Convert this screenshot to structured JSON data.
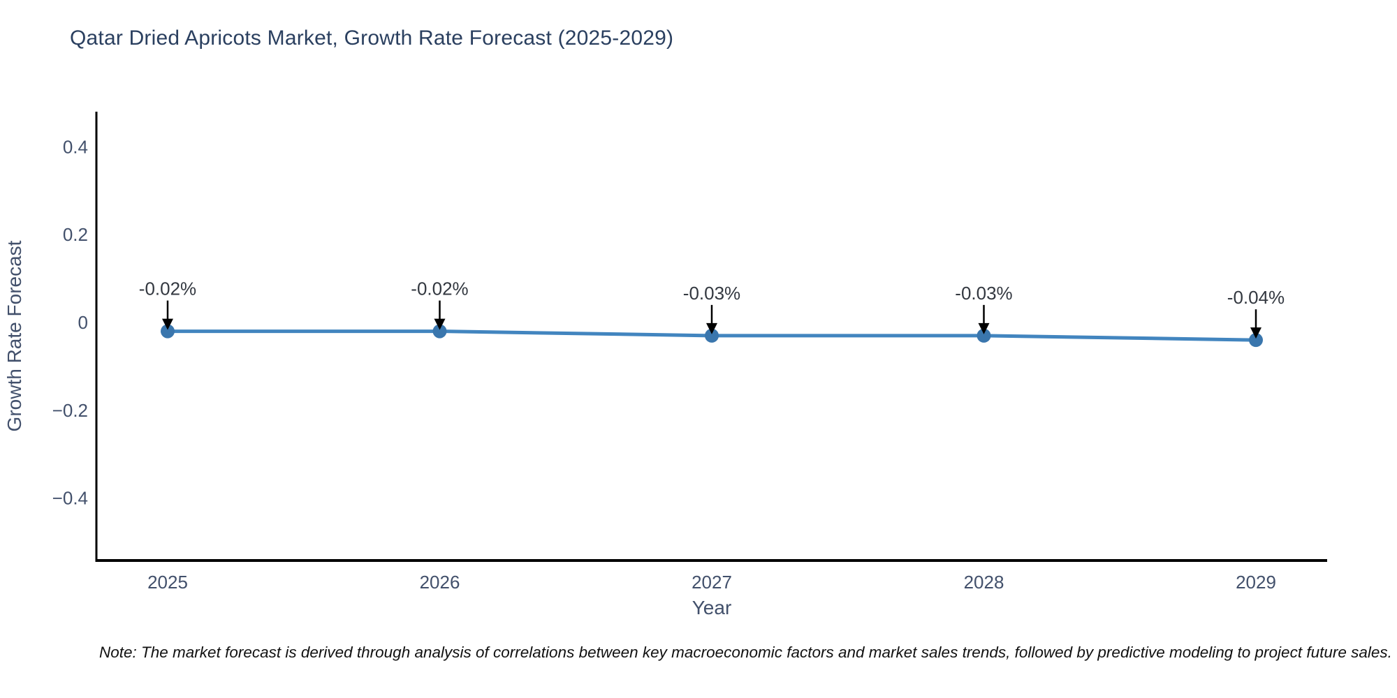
{
  "chart": {
    "title": "Qatar Dried Apricots Market, Growth Rate Forecast (2025-2029)",
    "note": "Note: The market forecast is derived through analysis of correlations between key macroeconomic factors and market sales trends, followed by predictive modeling to project future sales."
  },
  "chart_data": {
    "type": "line",
    "title": "Qatar Dried Apricots Market, Growth Rate Forecast (2025-2029)",
    "xlabel": "Year",
    "ylabel": "Growth Rate Forecast",
    "x": [
      2025,
      2026,
      2027,
      2028,
      2029
    ],
    "x_tick_labels": [
      "2025",
      "2026",
      "2027",
      "2028",
      "2029"
    ],
    "series": [
      {
        "name": "Growth Rate Forecast",
        "values": [
          -0.02,
          -0.02,
          -0.03,
          -0.03,
          -0.04
        ],
        "point_labels": [
          "-0.02%",
          "-0.02%",
          "-0.03%",
          "-0.03%",
          "-0.04%"
        ]
      }
    ],
    "ylim": [
      -0.542,
      0.48
    ],
    "yticks": [
      {
        "v": 0.4,
        "label": "0.4"
      },
      {
        "v": 0.2,
        "label": "0.2"
      },
      {
        "v": 0.0,
        "label": "0"
      },
      {
        "v": -0.2,
        "label": "−0.2"
      },
      {
        "v": -0.4,
        "label": "−0.4"
      }
    ],
    "grid": false,
    "legend": false,
    "annotations": "black arrow pointing down to each data point with value label above",
    "colors": {
      "line": "#4285bf",
      "marker": "#3a76ad",
      "axis": "#000000",
      "tick_label": "#42506b",
      "axis_title": "#42506b",
      "annotation_text": "#333840",
      "arrow": "#000000",
      "title": "#2a3f5f",
      "background": "#ffffff"
    }
  }
}
